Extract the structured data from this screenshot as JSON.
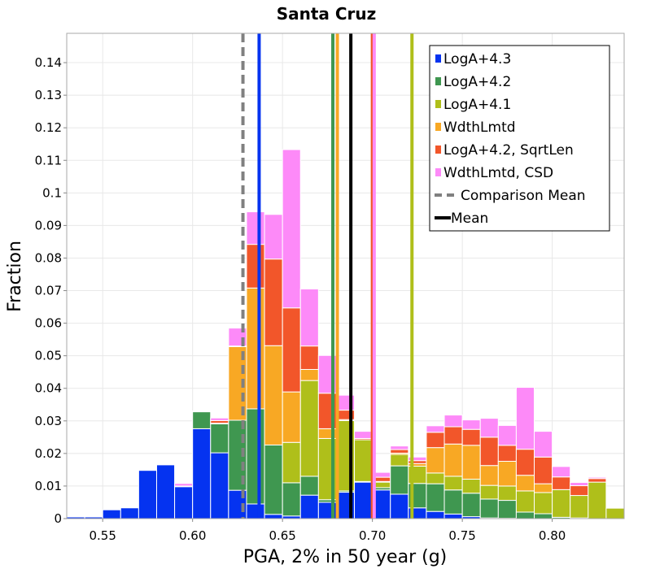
{
  "chart_data": {
    "type": "bar",
    "stacked": true,
    "title": "Santa Cruz",
    "xlabel": "PGA, 2% in 50 year (g)",
    "ylabel": "Fraction",
    "xlim": [
      0.53,
      0.84
    ],
    "ylim": [
      0,
      0.149
    ],
    "bin_width": 0.01,
    "grid": true,
    "legend_position": "top-right",
    "x_ticks": [
      "0.55",
      "0.60",
      "0.65",
      "0.70",
      "0.75",
      "0.80"
    ],
    "x_tick_values": [
      0.55,
      0.6,
      0.65,
      0.7,
      0.75,
      0.8
    ],
    "y_ticks": [
      "0",
      "0.01",
      "0.02",
      "0.03",
      "0.04",
      "0.05",
      "0.06",
      "0.07",
      "0.08",
      "0.09",
      "0.1",
      "0.11",
      "0.12",
      "0.13",
      "0.14"
    ],
    "y_tick_values": [
      0,
      0.01,
      0.02,
      0.03,
      0.04,
      0.05,
      0.06,
      0.07,
      0.08,
      0.09,
      0.1,
      0.11,
      0.12,
      0.13,
      0.14
    ],
    "bins": [
      0.535,
      0.545,
      0.555,
      0.565,
      0.575,
      0.585,
      0.595,
      0.605,
      0.615,
      0.625,
      0.635,
      0.645,
      0.655,
      0.665,
      0.675,
      0.685,
      0.695,
      0.705,
      0.715,
      0.725,
      0.735,
      0.745,
      0.755,
      0.765,
      0.775,
      0.785,
      0.795,
      0.805,
      0.815,
      0.825,
      0.835
    ],
    "series": [
      {
        "name": "LogA+4.3",
        "color": "#0533f0",
        "values": [
          0.0005,
          0.0005,
          0.0027,
          0.0033,
          0.0148,
          0.0165,
          0.0098,
          0.0276,
          0.0202,
          0.0087,
          0.0045,
          0.0013,
          0.0008,
          0.0072,
          0.005,
          0.0081,
          0.0112,
          0.0088,
          0.0075,
          0.0033,
          0.0022,
          0.0014,
          0.0006,
          0.0002,
          0.0001,
          0,
          0,
          0,
          0,
          0,
          0
        ]
      },
      {
        "name": "LogA+4.2",
        "color": "#3f9750",
        "values": [
          0,
          0,
          0,
          0,
          0,
          0,
          0,
          0.0052,
          0.0089,
          0.0215,
          0.0292,
          0.0213,
          0.0102,
          0.0058,
          0.0008,
          0.0004,
          0.0002,
          0.0007,
          0.0087,
          0.0075,
          0.0085,
          0.0074,
          0.0072,
          0.0058,
          0.0055,
          0.002,
          0.0015,
          0.0004,
          0.0002,
          0,
          0
        ]
      },
      {
        "name": "LogA+4.1",
        "color": "#afbf1a",
        "values": [
          0,
          0,
          0,
          0,
          0,
          0,
          0,
          0,
          0,
          0,
          0,
          0,
          0.0124,
          0.0294,
          0.0188,
          0.0216,
          0.0128,
          0.0017,
          0.0035,
          0.0053,
          0.0033,
          0.0042,
          0.0043,
          0.0042,
          0.0044,
          0.0065,
          0.0065,
          0.0085,
          0.0069,
          0.0112,
          0.0032
        ]
      },
      {
        "name": "WdthLmtd",
        "color": "#f8a824",
        "values": [
          0,
          0,
          0,
          0,
          0,
          0,
          0,
          0,
          0.0002,
          0.0226,
          0.0371,
          0.0305,
          0.0155,
          0.0034,
          0.003,
          0.0003,
          0,
          0.0002,
          0.0004,
          0.0008,
          0.0078,
          0.0099,
          0.0104,
          0.0061,
          0.0076,
          0.0048,
          0.0027,
          0,
          0,
          0,
          0
        ]
      },
      {
        "name": "LogA+4.2, SqrtLen",
        "color": "#f2562a",
        "values": [
          0,
          0,
          0,
          0,
          0,
          0,
          0.0002,
          0.0002,
          0.0008,
          0.0002,
          0.0134,
          0.0266,
          0.0258,
          0.0072,
          0.0109,
          0.0029,
          0.0004,
          0.0013,
          0.0011,
          0.0009,
          0.0047,
          0.0053,
          0.0049,
          0.0087,
          0.0049,
          0.008,
          0.0082,
          0.0039,
          0.003,
          0.0011,
          0
        ]
      },
      {
        "name": "WdthLmtd, CSD",
        "color": "#fd8af8",
        "values": [
          0,
          0,
          0,
          0,
          0,
          0,
          0.0008,
          0,
          0.0008,
          0.0055,
          0.01,
          0.0137,
          0.0486,
          0.0175,
          0.0116,
          0.0046,
          0.0022,
          0.0015,
          0.0011,
          0.0011,
          0.002,
          0.0036,
          0.0029,
          0.0058,
          0.0061,
          0.019,
          0.0079,
          0.0032,
          0.001,
          0.0004,
          0
        ]
      }
    ],
    "vertical_lines": [
      {
        "name": "LogA+4.3",
        "x": 0.637,
        "color": "#0533f0",
        "style": "solid"
      },
      {
        "name": "LogA+4.2",
        "x": 0.678,
        "color": "#3f9750",
        "style": "solid"
      },
      {
        "name": "WdthLmtd",
        "x": 0.6805,
        "color": "#f8a824",
        "style": "solid"
      },
      {
        "name": "LogA+4.2, SqrtLen",
        "x": 0.7,
        "color": "#f2562a",
        "style": "solid"
      },
      {
        "name": "WdthLmtd, CSD",
        "x": 0.701,
        "color": "#fd8af8",
        "style": "solid"
      },
      {
        "name": "LogA+4.1",
        "x": 0.722,
        "color": "#afbf1a",
        "style": "solid"
      },
      {
        "name": "Mean",
        "x": 0.688,
        "color": "#000000",
        "style": "solid"
      },
      {
        "name": "Comparison Mean",
        "x": 0.628,
        "color": "#808080",
        "style": "dashed"
      }
    ],
    "legend": [
      {
        "label": "LogA+4.3",
        "color": "#0533f0",
        "kind": "box"
      },
      {
        "label": "LogA+4.2",
        "color": "#3f9750",
        "kind": "box"
      },
      {
        "label": "LogA+4.1",
        "color": "#afbf1a",
        "kind": "box"
      },
      {
        "label": "WdthLmtd",
        "color": "#f8a824",
        "kind": "box"
      },
      {
        "label": "LogA+4.2, SqrtLen",
        "color": "#f2562a",
        "kind": "box"
      },
      {
        "label": "WdthLmtd, CSD",
        "color": "#fd8af8",
        "kind": "box"
      },
      {
        "label": "Comparison Mean",
        "color": "#808080",
        "kind": "dashed"
      },
      {
        "label": "Mean",
        "color": "#000000",
        "kind": "line"
      }
    ]
  }
}
